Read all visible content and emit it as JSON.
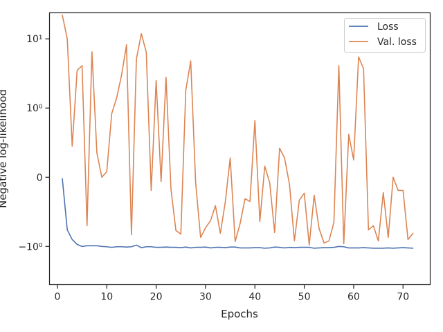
{
  "chart_data": {
    "type": "line",
    "xlabel": "Epochs",
    "ylabel": "Negative log-likelihood",
    "yscale": "symlog (linthresh 1)",
    "xlim": [
      -1.6,
      75.5
    ],
    "ylim": [
      -3.56,
      23.8
    ],
    "xticks": [
      0,
      10,
      20,
      30,
      40,
      50,
      60,
      70
    ],
    "xtick_labels": [
      "0",
      "10",
      "20",
      "30",
      "40",
      "50",
      "60",
      "70"
    ],
    "yticks": [
      10,
      1,
      0,
      -1
    ],
    "ytick_labels": [
      "10¹",
      "10⁰",
      "0",
      "−10⁰"
    ],
    "grid": false,
    "legend_position": "upper right",
    "x": [
      1,
      2,
      3,
      4,
      5,
      6,
      7,
      8,
      9,
      10,
      11,
      12,
      13,
      14,
      15,
      16,
      17,
      18,
      19,
      20,
      21,
      22,
      23,
      24,
      25,
      26,
      27,
      28,
      29,
      30,
      31,
      32,
      33,
      34,
      35,
      36,
      37,
      38,
      39,
      40,
      41,
      42,
      43,
      44,
      45,
      46,
      47,
      48,
      49,
      50,
      51,
      52,
      53,
      54,
      55,
      56,
      57,
      58,
      59,
      60,
      61,
      62,
      63,
      64,
      65,
      66,
      67,
      68,
      69,
      70,
      71,
      72
    ],
    "series": [
      {
        "name": "Loss",
        "color": "#4c72b0",
        "values": [
          -0.02,
          -0.76,
          -0.9,
          -0.97,
          -1.0,
          -0.99,
          -0.99,
          -0.99,
          -1.0,
          -1.01,
          -1.03,
          -1.01,
          -1.01,
          -1.02,
          -1.01,
          -0.98,
          -1.04,
          -1.01,
          -1.01,
          -1.03,
          -1.03,
          -1.02,
          -1.03,
          -1.03,
          -1.04,
          -1.02,
          -1.05,
          -1.03,
          -1.03,
          -1.02,
          -1.05,
          -1.03,
          -1.03,
          -1.04,
          -1.02,
          -1.02,
          -1.05,
          -1.05,
          -1.05,
          -1.04,
          -1.04,
          -1.06,
          -1.05,
          -1.02,
          -1.03,
          -1.05,
          -1.03,
          -1.04,
          -1.03,
          -1.03,
          -1.03,
          -1.06,
          -1.05,
          -1.04,
          -1.04,
          -1.03,
          -1.0,
          -1.01,
          -1.05,
          -1.05,
          -1.05,
          -1.04,
          -1.05,
          -1.06,
          -1.06,
          -1.06,
          -1.05,
          -1.06,
          -1.05,
          -1.04,
          -1.05,
          -1.06
        ]
      },
      {
        "name": "Val. loss",
        "color": "#dd8452",
        "values": [
          22.0,
          10.0,
          0.45,
          3.5,
          4.1,
          -0.7,
          6.5,
          0.35,
          0.0,
          0.08,
          0.92,
          1.4,
          3.0,
          8.2,
          -0.83,
          5.1,
          11.9,
          6.4,
          -0.19,
          2.5,
          -0.06,
          2.8,
          -0.17,
          -0.77,
          -0.82,
          1.8,
          4.8,
          -0.08,
          -0.87,
          -0.73,
          -0.63,
          -0.41,
          -0.81,
          -0.36,
          0.28,
          -0.93,
          -0.67,
          -0.31,
          -0.35,
          0.82,
          -0.64,
          0.16,
          -0.08,
          -0.8,
          0.42,
          0.28,
          -0.1,
          -0.92,
          -0.33,
          -0.23,
          -0.98,
          -0.26,
          -0.74,
          -0.95,
          -0.92,
          -0.65,
          4.1,
          -0.96,
          0.62,
          0.25,
          5.5,
          3.7,
          -0.76,
          -0.7,
          -0.92,
          -0.22,
          -0.87,
          0.0,
          -0.19,
          -0.19,
          -0.9,
          -0.81
        ]
      }
    ]
  }
}
